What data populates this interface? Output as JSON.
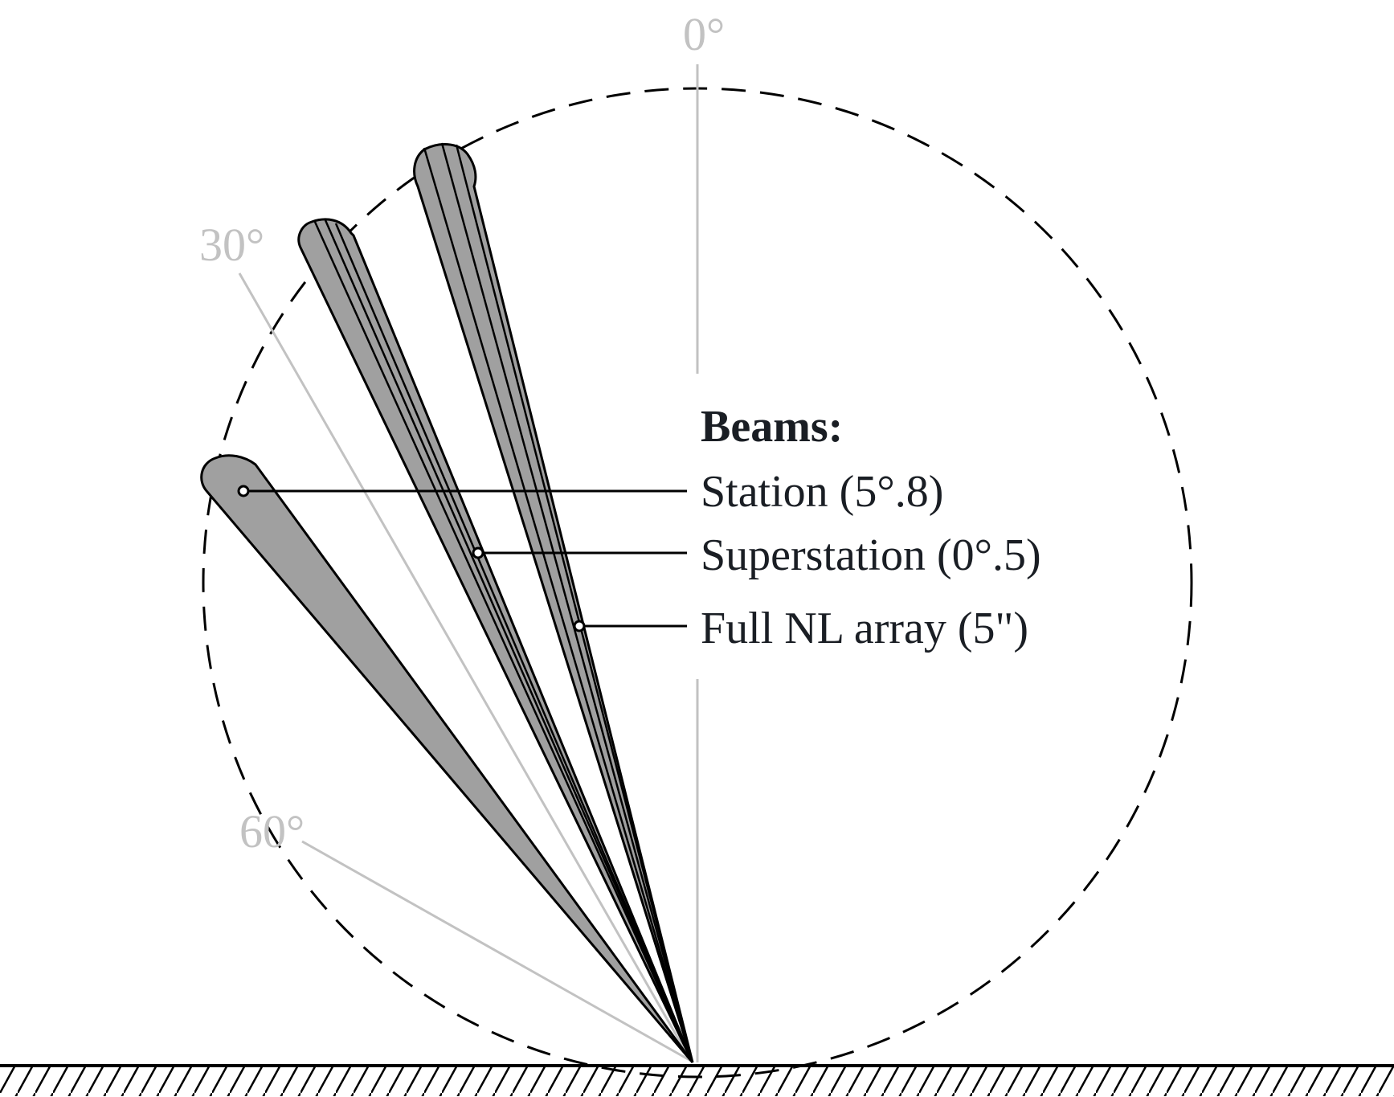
{
  "colors": {
    "beam_fill": "#a0a0a0",
    "guide_line": "#c2c2c2",
    "text": "#1a1e24",
    "outline": "#000000"
  },
  "angle_labels": {
    "zero": "0°",
    "thirty": "30°",
    "sixty": "60°"
  },
  "legend": {
    "title": "Beams:",
    "station": "Station (5°.8)",
    "superstation": "Superstation (0°.5)",
    "full_array": "Full NL array (5\")"
  }
}
